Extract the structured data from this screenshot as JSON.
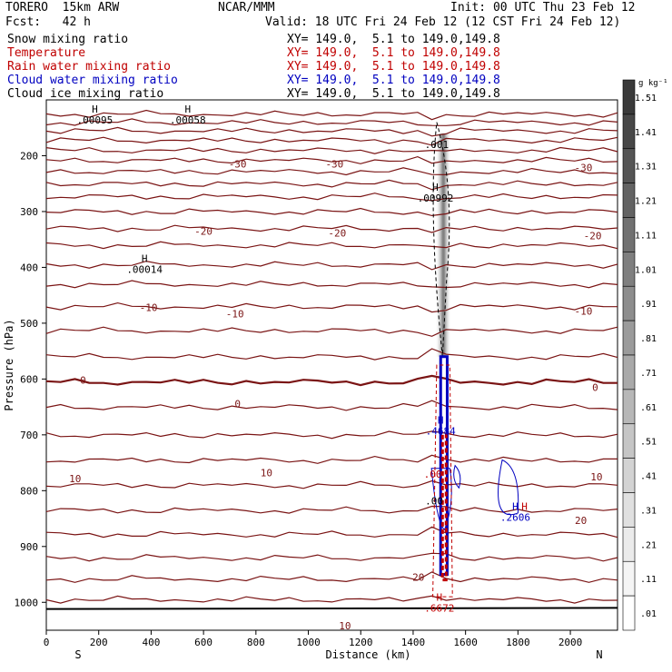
{
  "header": {
    "model": "TORERO  15km ARW",
    "org": "NCAR/MMM",
    "init": "Init: 00 UTC Thu 23 Feb 12",
    "fcst": "Fcst:   42 h",
    "valid": "Valid: 18 UTC Fri 24 Feb 12 (12 CST Fri 24 Feb 12)"
  },
  "legend": [
    {
      "label": "Snow mixing ratio",
      "xy": "XY= 149.0,  5.1 to 149.0,149.8",
      "color": "#000000"
    },
    {
      "label": "Temperature",
      "xy": "XY= 149.0,  5.1 to 149.0,149.8",
      "color": "#c00000"
    },
    {
      "label": "Rain water mixing ratio",
      "xy": "XY= 149.0,  5.1 to 149.0,149.8",
      "color": "#c00000"
    },
    {
      "label": "Cloud water mixing ratio",
      "xy": "XY= 149.0,  5.1 to 149.0,149.8",
      "color": "#0000c0"
    },
    {
      "label": "Cloud ice mixing ratio",
      "xy": "XY= 149.0,  5.1 to 149.0,149.8",
      "color": "#000000"
    }
  ],
  "chart_data": {
    "type": "contour-cross-section",
    "xlabel": "Distance (km)",
    "ylabel": "Pressure (hPa)",
    "xlim": [
      0,
      2180
    ],
    "ylim": [
      1050,
      100
    ],
    "x_ticks": [
      0,
      200,
      400,
      600,
      800,
      1000,
      1200,
      1400,
      1600,
      1800,
      2000
    ],
    "y_ticks": [
      200,
      300,
      400,
      500,
      600,
      700,
      800,
      900,
      1000
    ],
    "x_end_labels": {
      "left": "S",
      "right": "N"
    },
    "colorbar": {
      "unit": "g kg⁻¹",
      "levels": [
        "1.51",
        "1.41",
        "1.31",
        "1.21",
        "1.11",
        "1.01",
        ".91",
        ".81",
        ".71",
        ".61",
        ".51",
        ".41",
        ".31",
        ".21",
        ".11",
        ".01"
      ],
      "colors": [
        "#3a3a3a",
        "#474747",
        "#555555",
        "#636363",
        "#717171",
        "#7f7f7f",
        "#8d8d8d",
        "#9b9b9b",
        "#a9a9a9",
        "#b7b7b7",
        "#c5c5c5",
        "#d3d3d3",
        "#e0e0e0",
        "#ebebeb",
        "#f5f5f5",
        "#ffffff"
      ]
    },
    "temperature_labels": [
      {
        "x": 1420,
        "p": 955,
        "t": "20"
      },
      {
        "x": 2040,
        "p": 853,
        "t": "20"
      },
      {
        "x": 1140,
        "p": 1042,
        "t": "10"
      },
      {
        "x": 110,
        "p": 778,
        "t": "10"
      },
      {
        "x": 840,
        "p": 768,
        "t": "10"
      },
      {
        "x": 2100,
        "p": 775,
        "t": "10"
      },
      {
        "x": 730,
        "p": 644,
        "t": "0"
      },
      {
        "x": 140,
        "p": 602,
        "t": "0"
      },
      {
        "x": 2095,
        "p": 615,
        "t": "0"
      },
      {
        "x": 390,
        "p": 472,
        "t": "-10"
      },
      {
        "x": 720,
        "p": 483,
        "t": "-10"
      },
      {
        "x": 2050,
        "p": 478,
        "t": "-10"
      },
      {
        "x": 600,
        "p": 335,
        "t": "-20"
      },
      {
        "x": 1110,
        "p": 338,
        "t": "-20"
      },
      {
        "x": 2085,
        "p": 343,
        "t": "-20"
      },
      {
        "x": 730,
        "p": 215,
        "t": "-30"
      },
      {
        "x": 1100,
        "p": 215,
        "t": "-30"
      },
      {
        "x": 2050,
        "p": 221,
        "t": "-30"
      }
    ],
    "extrema": [
      {
        "x": 185,
        "p": 100,
        "mark": "H",
        "val": ".00095",
        "color": "#000000"
      },
      {
        "x": 540,
        "p": 100,
        "mark": "H",
        "val": ".00058",
        "color": "#000000"
      },
      {
        "x": 375,
        "p": 368,
        "mark": "H",
        "val": ".00014",
        "color": "#000000"
      },
      {
        "x": 1485,
        "p": 240,
        "mark": "H",
        "val": ".00992",
        "color": "#000000"
      },
      {
        "x": 1505,
        "p": 657,
        "mark": "H",
        "val": ".4684",
        "color": "#0000c0"
      },
      {
        "x": 1790,
        "p": 812,
        "mark": "H",
        "val": ".2606",
        "color": "#0000c0"
      },
      {
        "x": 1825,
        "p": 812,
        "mark": "H",
        "val": "",
        "color": "#c00000"
      },
      {
        "x": 1500,
        "p": 974,
        "mark": "H",
        "val": ".6672",
        "color": "#c00000"
      }
    ],
    "contour_labels": [
      {
        "x": 1490,
        "p": 180,
        "t": ".001",
        "color": "#000000"
      },
      {
        "x": 1475,
        "p": 770,
        "t": ".00",
        "color": "#c00000"
      },
      {
        "x": 1480,
        "p": 818,
        "t": ".00",
        "color": "#000000"
      }
    ]
  }
}
